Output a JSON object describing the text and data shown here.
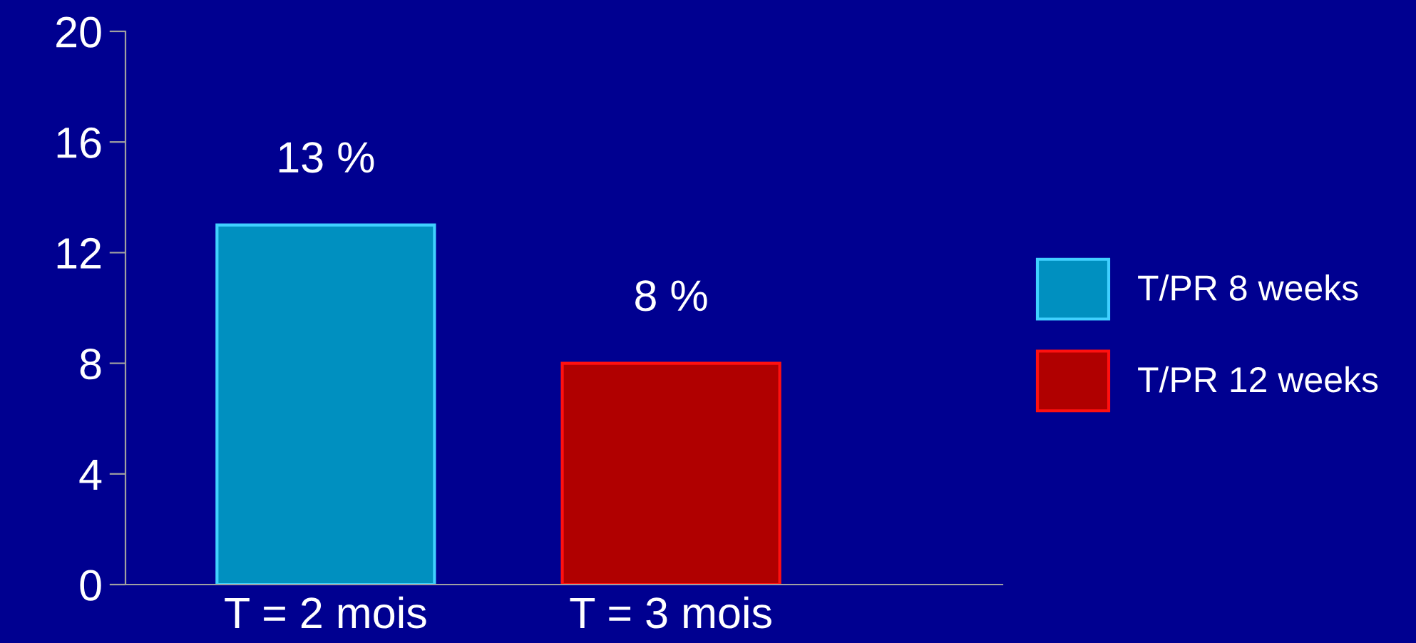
{
  "chart_data": {
    "type": "bar",
    "categories": [
      "T = 2 mois",
      "T = 3 mois"
    ],
    "series": [
      {
        "name": "T/PR 8 weeks",
        "color": "#0090c0",
        "values": [
          13,
          null
        ],
        "value_labels": [
          "13 %",
          null
        ]
      },
      {
        "name": "T/PR 12 weeks",
        "color": "#b00000",
        "values": [
          null,
          8
        ],
        "value_labels": [
          null,
          "8 %"
        ]
      }
    ],
    "ylim": [
      0,
      20
    ],
    "yticks": [
      0,
      4,
      8,
      12,
      16,
      20
    ],
    "grid": false,
    "legend": "right"
  }
}
